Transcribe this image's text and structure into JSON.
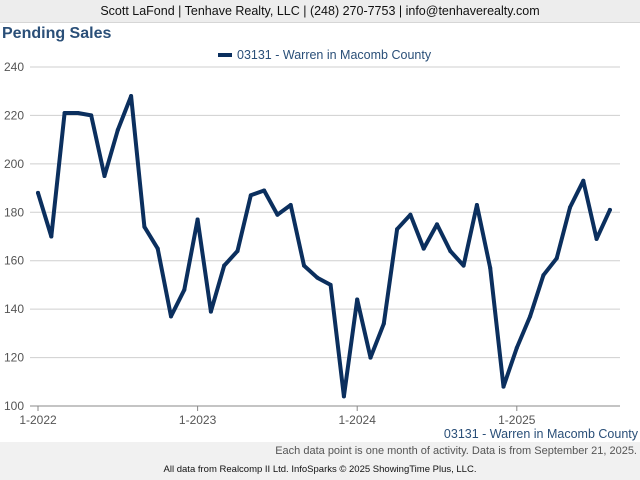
{
  "header": {
    "contact": "Scott LaFond | Tenhave Realty, LLC | (248) 270-7753 | info@tenhaverealty.com"
  },
  "chart_data": {
    "type": "line",
    "title": "Pending Sales",
    "xlabel": "",
    "ylabel": "",
    "ylim": [
      100,
      240
    ],
    "yticks": [
      100,
      120,
      140,
      160,
      180,
      200,
      220,
      240
    ],
    "xtick_labels": [
      "1-2022",
      "1-2023",
      "1-2024",
      "1-2025"
    ],
    "grid": true,
    "legend_position": "top-center",
    "series": [
      {
        "name": "03131 - Warren in Macomb County",
        "color": "#0b2f5e",
        "x": [
          "2022-01",
          "2022-02",
          "2022-03",
          "2022-04",
          "2022-05",
          "2022-06",
          "2022-07",
          "2022-08",
          "2022-09",
          "2022-10",
          "2022-11",
          "2022-12",
          "2023-01",
          "2023-02",
          "2023-03",
          "2023-04",
          "2023-05",
          "2023-06",
          "2023-07",
          "2023-08",
          "2023-09",
          "2023-10",
          "2023-11",
          "2023-12",
          "2024-01",
          "2024-02",
          "2024-03",
          "2024-04",
          "2024-05",
          "2024-06",
          "2024-07",
          "2024-08",
          "2024-09",
          "2024-10",
          "2024-11",
          "2024-12",
          "2025-01",
          "2025-02",
          "2025-03",
          "2025-04",
          "2025-05",
          "2025-06",
          "2025-07",
          "2025-08"
        ],
        "values": [
          188,
          170,
          221,
          221,
          220,
          195,
          214,
          228,
          174,
          165,
          137,
          148,
          177,
          139,
          158,
          164,
          187,
          189,
          179,
          183,
          158,
          153,
          150,
          104,
          144,
          120,
          134,
          173,
          179,
          165,
          175,
          164,
          158,
          183,
          157,
          108,
          124,
          137,
          154,
          161,
          182,
          193,
          169,
          181
        ]
      }
    ]
  },
  "footer": {
    "region": "03131 - Warren in Macomb County",
    "note": "Each data point is one month of activity. Data is from September 21, 2025.",
    "credits": "All data from Realcomp II Ltd. InfoSparks © 2025 ShowingTime Plus, LLC."
  }
}
